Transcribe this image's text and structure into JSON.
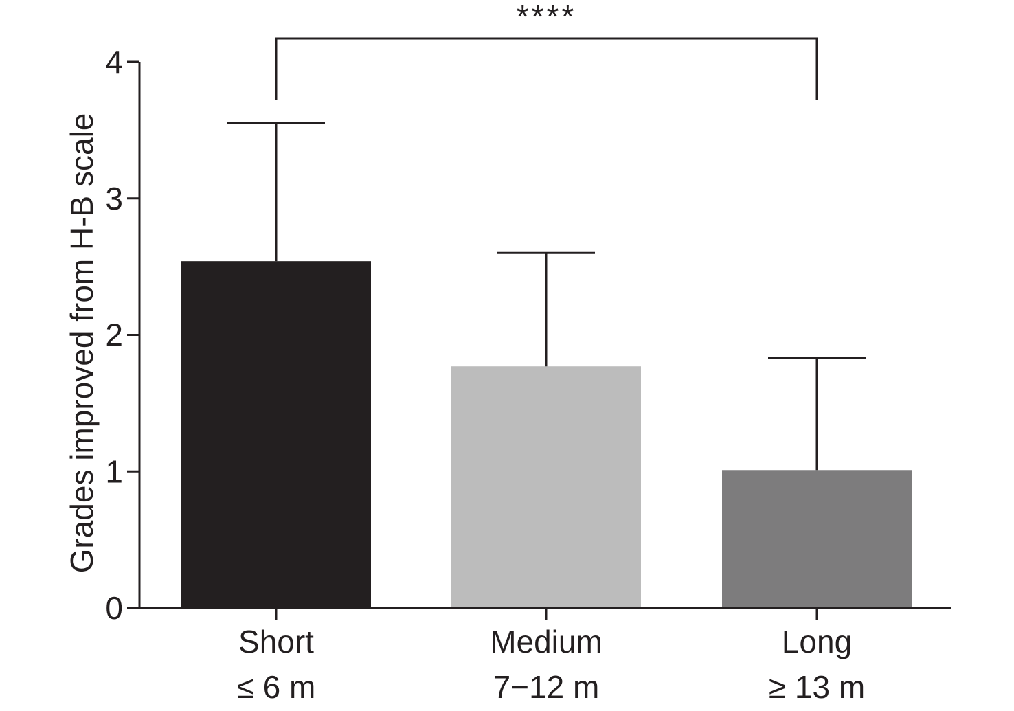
{
  "chart_data": {
    "type": "bar",
    "categories": [
      "Short",
      "Medium",
      "Long"
    ],
    "category_sublabels": [
      "≤ 6 m",
      "7−12 m",
      "≥ 13 m"
    ],
    "values": [
      2.54,
      1.77,
      1.01
    ],
    "error_upper": [
      3.55,
      2.6,
      1.83
    ],
    "bar_colors": [
      "#231f20",
      "#bcbcbc",
      "#7d7c7d"
    ],
    "title": "",
    "xlabel": "",
    "ylabel": "Grades improved from H-B scale",
    "ylim": [
      0,
      4
    ],
    "yticks": [
      0,
      1,
      2,
      3,
      4
    ],
    "grid": false,
    "significance": {
      "from_category": "Short",
      "to_category": "Long",
      "label": "****"
    }
  }
}
